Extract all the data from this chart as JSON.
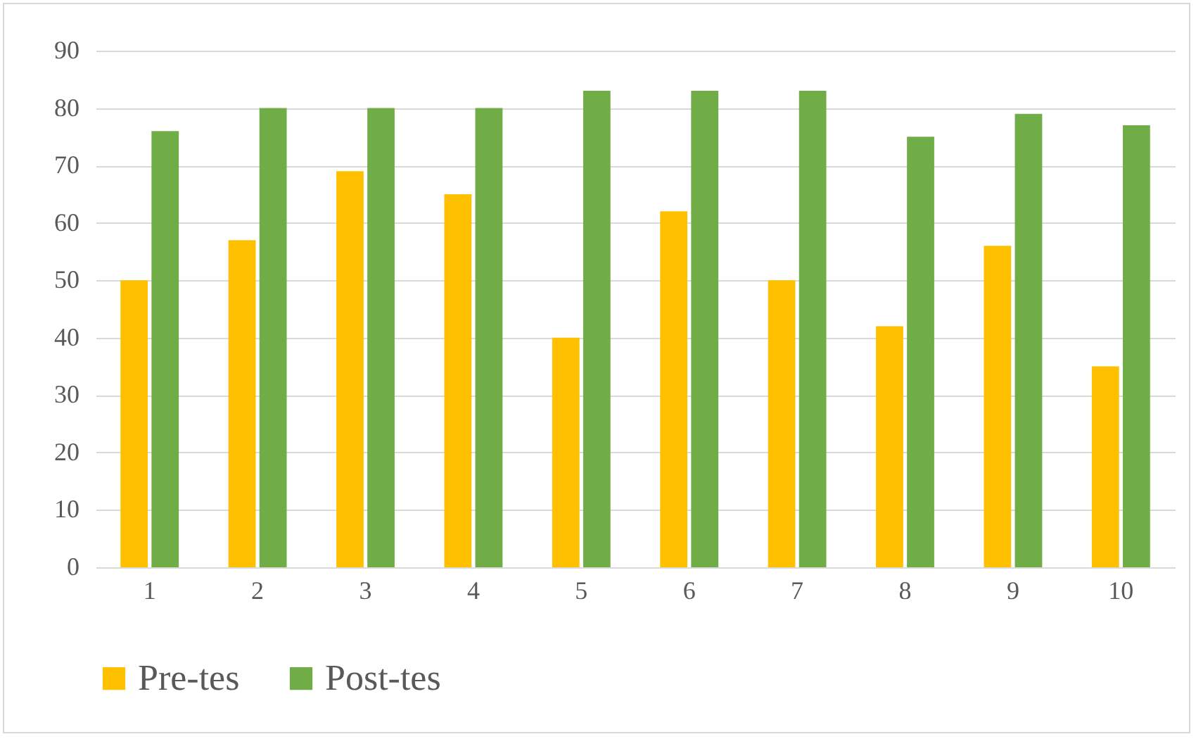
{
  "chart_data": {
    "type": "bar",
    "categories": [
      "1",
      "2",
      "3",
      "4",
      "5",
      "6",
      "7",
      "8",
      "9",
      "10"
    ],
    "series": [
      {
        "name": "Pre-tes",
        "color": "#ffc000",
        "values": [
          50,
          57,
          69,
          65,
          40,
          62,
          50,
          42,
          56,
          35
        ]
      },
      {
        "name": "Post-tes",
        "color": "#70ad47",
        "values": [
          76,
          80,
          80,
          80,
          83,
          83,
          83,
          75,
          79,
          77
        ]
      }
    ],
    "ylim": [
      0,
      90
    ],
    "yticks": [
      0,
      10,
      20,
      30,
      40,
      50,
      60,
      70,
      80,
      90
    ],
    "grid": "y",
    "legend": "bottom"
  }
}
